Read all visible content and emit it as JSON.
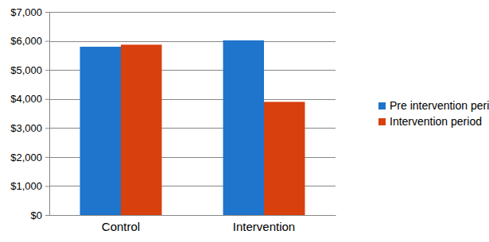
{
  "chart_data": {
    "type": "bar",
    "categories": [
      "Control",
      "Intervention"
    ],
    "series": [
      {
        "name": "Pre intervention period",
        "color": "#1f74cc",
        "values": [
          5800,
          6020
        ]
      },
      {
        "name": "Intervention period",
        "color": "#d8400e",
        "values": [
          5870,
          3900
        ]
      }
    ],
    "ylim": [
      0,
      7000
    ],
    "yticks": [
      {
        "value": 0,
        "label": "$0"
      },
      {
        "value": 1000,
        "label": "$1,000"
      },
      {
        "value": 2000,
        "label": "$2,000"
      },
      {
        "value": 3000,
        "label": "$3,000"
      },
      {
        "value": 4000,
        "label": "$4,000"
      },
      {
        "value": 5000,
        "label": "$5,000"
      },
      {
        "value": 6000,
        "label": "$6,000"
      },
      {
        "value": 7000,
        "label": "$7,000"
      }
    ],
    "grid": true,
    "legend": "right"
  }
}
